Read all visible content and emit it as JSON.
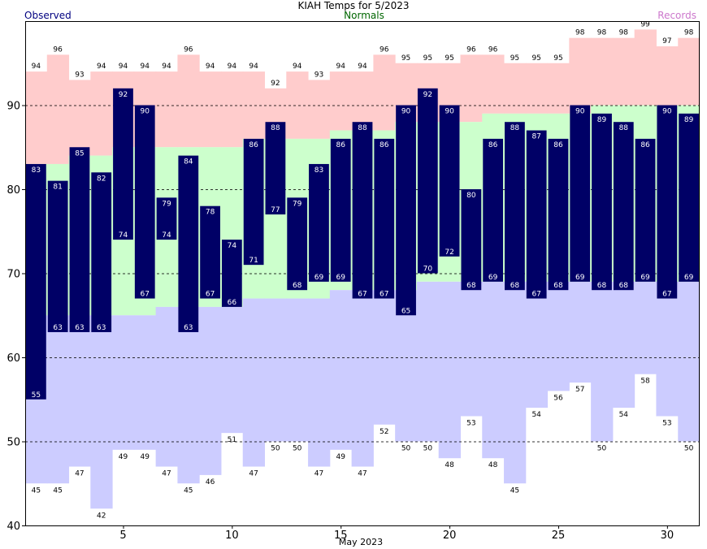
{
  "chart_data": {
    "type": "bar",
    "title": "KIAH Temps for 5/2023",
    "xlabel": "May 2023",
    "ylabel": "",
    "xlim": [
      0.5,
      31.5
    ],
    "ylim": [
      40,
      100
    ],
    "grid": true,
    "y_gridlines": [
      50,
      60,
      70,
      80,
      90
    ],
    "x_ticks": [
      5,
      10,
      15,
      20,
      25,
      30
    ],
    "y_ticks": [
      40,
      50,
      60,
      70,
      80,
      90
    ],
    "legend": {
      "observed": "Observed",
      "normals": "Normals",
      "records": "Records"
    },
    "colors": {
      "observed": "#000066",
      "observed_legend": "#000080",
      "normals_legend": "#006600",
      "records_legend": "#cc77cc",
      "record_high_band": "#ffcccc",
      "normal_band": "#ccffcc",
      "record_low_band": "#ccccff",
      "background": "#ffffff",
      "bar_label": "#ffffff",
      "record_label": "#000000",
      "gridline": "#000000"
    },
    "days": [
      1,
      2,
      3,
      4,
      5,
      6,
      7,
      8,
      9,
      10,
      11,
      12,
      13,
      14,
      15,
      16,
      17,
      18,
      19,
      20,
      21,
      22,
      23,
      24,
      25,
      26,
      27,
      28,
      29,
      30,
      31
    ],
    "observed_high": [
      83,
      81,
      85,
      82,
      92,
      90,
      79,
      84,
      78,
      74,
      86,
      88,
      79,
      83,
      86,
      88,
      86,
      90,
      92,
      90,
      80,
      86,
      88,
      87,
      86,
      90,
      89,
      88,
      86,
      90,
      89
    ],
    "observed_low": [
      55,
      63,
      63,
      63,
      74,
      67,
      74,
      63,
      67,
      66,
      71,
      77,
      68,
      69,
      69,
      67,
      67,
      65,
      70,
      72,
      68,
      69,
      68,
      67,
      68,
      69,
      68,
      68,
      69,
      67,
      69
    ],
    "record_high": [
      94,
      96,
      93,
      94,
      94,
      94,
      94,
      96,
      94,
      94,
      94,
      92,
      94,
      93,
      94,
      94,
      96,
      95,
      95,
      95,
      96,
      96,
      95,
      95,
      95,
      98,
      98,
      98,
      99,
      97,
      98
    ],
    "record_low": [
      45,
      45,
      47,
      42,
      49,
      49,
      47,
      45,
      46,
      51,
      47,
      50,
      50,
      47,
      49,
      47,
      52,
      50,
      50,
      48,
      53,
      48,
      45,
      54,
      56,
      57,
      50,
      54,
      58,
      53,
      50
    ],
    "normal_high": [
      83,
      83,
      84,
      84,
      85,
      85,
      85,
      85,
      85,
      85,
      86,
      86,
      86,
      86,
      87,
      87,
      87,
      88,
      88,
      88,
      88,
      89,
      89,
      89,
      89,
      89,
      90,
      90,
      90,
      90,
      90
    ],
    "normal_low": [
      65,
      65,
      65,
      65,
      65,
      65,
      66,
      66,
      66,
      66,
      67,
      67,
      67,
      67,
      68,
      68,
      68,
      68,
      69,
      69,
      69,
      69,
      69,
      69,
      69,
      69,
      69,
      69,
      69,
      69,
      69
    ]
  }
}
